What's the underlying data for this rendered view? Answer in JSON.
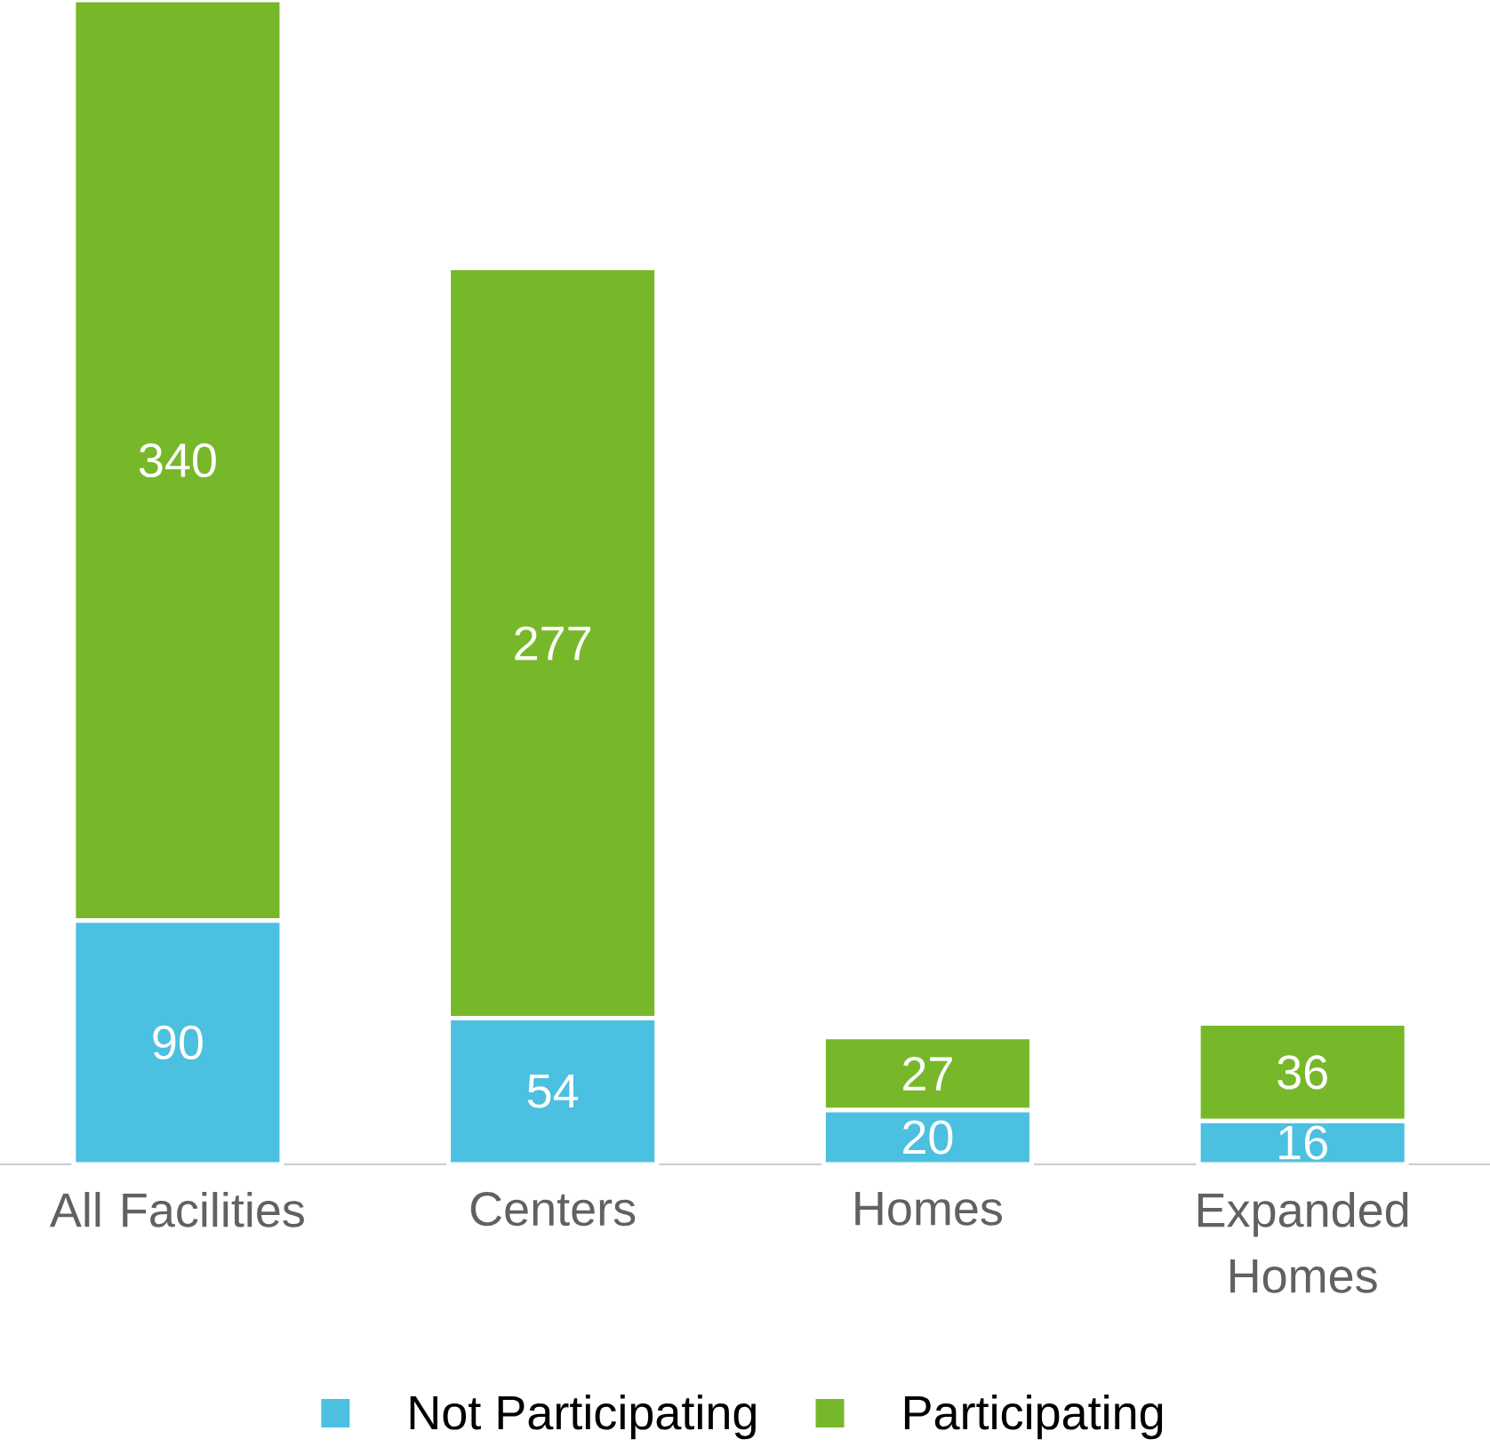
{
  "chart_data": {
    "type": "bar",
    "stacked": true,
    "categories": [
      "All Facilities",
      "Centers",
      "Homes",
      "Expanded Homes"
    ],
    "series": [
      {
        "name": "Not Participating",
        "color": "#4bc0e0",
        "values": [
          90,
          54,
          20,
          16
        ]
      },
      {
        "name": "Participating",
        "color": "#77b82a",
        "values": [
          340,
          277,
          27,
          36
        ]
      }
    ],
    "tick_labels": "x",
    "data_labels": true,
    "legend": "bottom"
  }
}
